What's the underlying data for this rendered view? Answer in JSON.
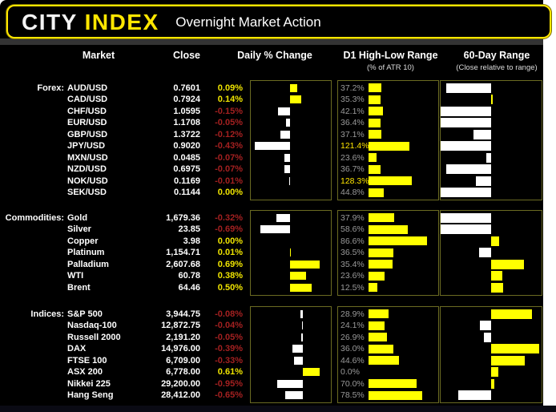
{
  "header": {
    "logo_city": "CITY",
    "logo_index": "INDEX",
    "title": "Overnight Market Action"
  },
  "columns": {
    "market": "Market",
    "close": "Close",
    "daily": "Daily % Change",
    "d1": "D1 High-Low Range",
    "d1_sub": "(% of ATR 10)",
    "range60": "60-Day Range",
    "range60_sub": "(Close relative to range)"
  },
  "colors": {
    "background": "#000000",
    "page": "#ffffff",
    "accent_yellow": "#ffe600",
    "bar_yellow": "#ffff00",
    "bar_white": "#ffffff",
    "positive_text": "#efe400",
    "negative_text": "#a32020",
    "d1_label_gray": "#9a9a9a",
    "panel_border": "#6b6b22"
  },
  "chart_data": {
    "type": "table",
    "note": "change_pct = daily % change; d1_pct = D1 high-low range as % of ATR10; range_pos = close position in 60-day range (0=low, 1=high)",
    "sections": [
      {
        "label": "Forex:",
        "rows": [
          {
            "market": "AUD/USD",
            "close": "0.7601",
            "change_pct": 0.09,
            "change_label": "0.09%",
            "d1_pct": 37.2,
            "d1_label": "37.2%",
            "range_pos": 0.06
          },
          {
            "market": "CAD/USD",
            "close": "0.7924",
            "change_pct": 0.14,
            "change_label": "0.14%",
            "d1_pct": 35.3,
            "d1_label": "35.3%",
            "range_pos": 0.51
          },
          {
            "market": "CHF/USD",
            "close": "1.0595",
            "change_pct": -0.15,
            "change_label": "-0.15%",
            "d1_pct": 42.1,
            "d1_label": "42.1%",
            "range_pos": 0.01
          },
          {
            "market": "EUR/USD",
            "close": "1.1708",
            "change_pct": -0.05,
            "change_label": "-0.05%",
            "d1_pct": 36.4,
            "d1_label": "36.4%",
            "range_pos": 0.01
          },
          {
            "market": "GBP/USD",
            "close": "1.3722",
            "change_pct": -0.12,
            "change_label": "-0.12%",
            "d1_pct": 37.1,
            "d1_label": "37.1%",
            "range_pos": 0.33
          },
          {
            "market": "JPY/USD",
            "close": "0.9020",
            "change_pct": -0.43,
            "change_label": "-0.43%",
            "d1_pct": 121.4,
            "d1_label": "121.4%",
            "range_pos": 0.01
          },
          {
            "market": "MXN/USD",
            "close": "0.0485",
            "change_pct": -0.07,
            "change_label": "-0.07%",
            "d1_pct": 23.6,
            "d1_label": "23.6%",
            "range_pos": 0.45
          },
          {
            "market": "NZD/USD",
            "close": "0.6975",
            "change_pct": -0.07,
            "change_label": "-0.07%",
            "d1_pct": 36.7,
            "d1_label": "36.7%",
            "range_pos": 0.06
          },
          {
            "market": "NOK/USD",
            "close": "0.1169",
            "change_pct": -0.01,
            "change_label": "-0.01%",
            "d1_pct": 128.3,
            "d1_label": "128.3%",
            "range_pos": 0.35
          },
          {
            "market": "SEK/USD",
            "close": "0.1144",
            "change_pct": 0.0,
            "change_label": "0.00%",
            "d1_pct": 44.8,
            "d1_label": "44.8%",
            "range_pos": 0.01
          }
        ]
      },
      {
        "label": "Commodities:",
        "rows": [
          {
            "market": "Gold",
            "close": "1,679.36",
            "change_pct": -0.32,
            "change_label": "-0.32%",
            "d1_pct": 37.9,
            "d1_label": "37.9%",
            "range_pos": 0.01
          },
          {
            "market": "Silver",
            "close": "23.85",
            "change_pct": -0.69,
            "change_label": "-0.69%",
            "d1_pct": 58.6,
            "d1_label": "58.6%",
            "range_pos": 0.01
          },
          {
            "market": "Copper",
            "close": "3.98",
            "change_pct": 0.0,
            "change_label": "0.00%",
            "d1_pct": 86.6,
            "d1_label": "86.6%",
            "range_pos": 0.58
          },
          {
            "market": "Platinum",
            "close": "1,154.71",
            "change_pct": 0.01,
            "change_label": "0.01%",
            "d1_pct": 36.5,
            "d1_label": "36.5%",
            "range_pos": 0.38
          },
          {
            "market": "Palladium",
            "close": "2,607.68",
            "change_pct": 0.69,
            "change_label": "0.69%",
            "d1_pct": 35.4,
            "d1_label": "35.4%",
            "range_pos": 0.82
          },
          {
            "market": "WTI",
            "close": "60.78",
            "change_pct": 0.38,
            "change_label": "0.38%",
            "d1_pct": 23.6,
            "d1_label": "23.6%",
            "range_pos": 0.61
          },
          {
            "market": "Brent",
            "close": "64.46",
            "change_pct": 0.5,
            "change_label": "0.50%",
            "d1_pct": 12.5,
            "d1_label": "12.5%",
            "range_pos": 0.62
          }
        ]
      },
      {
        "label": "Indices:",
        "rows": [
          {
            "market": "S&P 500",
            "close": "3,944.75",
            "change_pct": -0.08,
            "change_label": "-0.08%",
            "d1_pct": 28.9,
            "d1_label": "28.9%",
            "range_pos": 0.9
          },
          {
            "market": "Nasdaq-100",
            "close": "12,872.75",
            "change_pct": -0.04,
            "change_label": "-0.04%",
            "d1_pct": 24.1,
            "d1_label": "24.1%",
            "range_pos": 0.39
          },
          {
            "market": "Russell 2000",
            "close": "2,191.20",
            "change_pct": -0.05,
            "change_label": "-0.05%",
            "d1_pct": 26.9,
            "d1_label": "26.9%",
            "range_pos": 0.43
          },
          {
            "market": "DAX",
            "close": "14,976.00",
            "change_pct": -0.39,
            "change_label": "-0.39%",
            "d1_pct": 36.0,
            "d1_label": "36.0%",
            "range_pos": 0.97
          },
          {
            "market": "FTSE 100",
            "close": "6,709.00",
            "change_pct": -0.33,
            "change_label": "-0.33%",
            "d1_pct": 44.6,
            "d1_label": "44.6%",
            "range_pos": 0.83
          },
          {
            "market": "ASX 200",
            "close": "6,778.00",
            "change_pct": 0.61,
            "change_label": "0.61%",
            "d1_pct": 0.0,
            "d1_label": "0.0%",
            "range_pos": 0.57
          },
          {
            "market": "Nikkei 225",
            "close": "29,200.00",
            "change_pct": -0.95,
            "change_label": "-0.95%",
            "d1_pct": 70.0,
            "d1_label": "70.0%",
            "range_pos": 0.53
          },
          {
            "market": "Hang Seng",
            "close": "28,412.00",
            "change_pct": -0.65,
            "change_label": "-0.65%",
            "d1_pct": 78.5,
            "d1_label": "78.5%",
            "range_pos": 0.18
          }
        ]
      }
    ]
  }
}
